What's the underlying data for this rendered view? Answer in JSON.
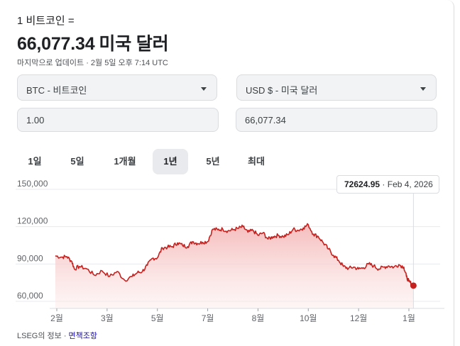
{
  "converter": {
    "from_line": "1 비트코인 =",
    "to_value": "66,077.34",
    "to_unit": "미국 달러",
    "updated": "마지막으로 업데이트 · 2월 5일 오후 7:14 UTC",
    "from_currency": "BTC - 비트코인",
    "to_currency": "USD $ - 미국 달러",
    "from_amount": "1.00",
    "to_amount": "66,077.34"
  },
  "tabs": [
    {
      "label": "1일"
    },
    {
      "label": "5일"
    },
    {
      "label": "1개월"
    },
    {
      "label": "1년",
      "active": true
    },
    {
      "label": "5년"
    },
    {
      "label": "최대"
    }
  ],
  "tooltip": {
    "value": "72624.95",
    "date": "· Feb 4, 2026"
  },
  "footer": {
    "source": "LSEG의 정보 · ",
    "disclaimer": "면책조항"
  },
  "colors": {
    "line": "#c5221f",
    "fill_top": "#f4b4b4",
    "fill_bottom": "#fdecec",
    "grid": "#e8eaed"
  },
  "chart_data": {
    "type": "area",
    "ylim": [
      55000,
      155000
    ],
    "yticks": [
      {
        "value": 150000,
        "label": "150,000"
      },
      {
        "value": 120000,
        "label": "120,000"
      },
      {
        "value": 90000,
        "label": "90,000"
      },
      {
        "value": 60000,
        "label": "60,000"
      }
    ],
    "xlim": [
      0,
      12.3
    ],
    "xticks": [
      {
        "value": 0,
        "label": "2월"
      },
      {
        "value": 1,
        "label": "3월"
      },
      {
        "value": 2,
        "label": "5월"
      },
      {
        "value": 3,
        "label": "7월"
      },
      {
        "value": 4,
        "label": "8월"
      },
      {
        "value": 5,
        "label": "10월"
      },
      {
        "value": 6,
        "label": "12월"
      },
      {
        "value": 7,
        "label": "1월"
      }
    ],
    "series": [
      {
        "values": [
          [
            -0.03,
            96500
          ],
          [
            0.1,
            95500
          ],
          [
            0.2,
            96000
          ],
          [
            0.3,
            92000
          ],
          [
            0.35,
            86000
          ],
          [
            0.45,
            88000
          ],
          [
            0.6,
            86000
          ],
          [
            0.75,
            81000
          ],
          [
            0.9,
            84500
          ],
          [
            1.05,
            80000
          ],
          [
            1.2,
            84000
          ],
          [
            1.35,
            77000
          ],
          [
            1.5,
            80000
          ],
          [
            1.6,
            83000
          ],
          [
            1.7,
            84000
          ],
          [
            1.8,
            89000
          ],
          [
            1.9,
            94500
          ],
          [
            2.0,
            95000
          ],
          [
            2.1,
            103000
          ],
          [
            2.2,
            103500
          ],
          [
            2.3,
            104000
          ],
          [
            2.4,
            107000
          ],
          [
            2.5,
            105000
          ],
          [
            2.6,
            104000
          ],
          [
            2.7,
            108000
          ],
          [
            2.8,
            106500
          ],
          [
            2.9,
            107500
          ],
          [
            3.0,
            108000
          ],
          [
            3.1,
            118000
          ],
          [
            3.2,
            117500
          ],
          [
            3.3,
            118000
          ],
          [
            3.4,
            116500
          ],
          [
            3.5,
            117500
          ],
          [
            3.6,
            118500
          ],
          [
            3.7,
            120000
          ],
          [
            3.8,
            115500
          ],
          [
            3.9,
            117000
          ],
          [
            4.0,
            113000
          ],
          [
            4.1,
            115000
          ],
          [
            4.2,
            110000
          ],
          [
            4.3,
            112000
          ],
          [
            4.4,
            113000
          ],
          [
            4.5,
            112000
          ],
          [
            4.6,
            113500
          ],
          [
            4.7,
            118000
          ],
          [
            4.8,
            117000
          ],
          [
            4.9,
            119000
          ],
          [
            5.0,
            121500
          ],
          [
            5.1,
            114000
          ],
          [
            5.2,
            112000
          ],
          [
            5.3,
            107000
          ],
          [
            5.4,
            102000
          ],
          [
            5.5,
            97000
          ],
          [
            5.6,
            93000
          ],
          [
            5.7,
            88000
          ],
          [
            5.8,
            86500
          ],
          [
            5.9,
            87500
          ],
          [
            6.0,
            86000
          ],
          [
            6.1,
            87000
          ],
          [
            6.2,
            90000
          ],
          [
            6.3,
            88500
          ],
          [
            6.4,
            86000
          ],
          [
            6.5,
            87500
          ],
          [
            6.6,
            88500
          ],
          [
            6.7,
            87500
          ],
          [
            6.8,
            89500
          ],
          [
            6.9,
            87500
          ],
          [
            6.95,
            80000
          ],
          [
            7.0,
            76000
          ],
          [
            7.05,
            74000
          ],
          [
            7.09,
            72624.95
          ]
        ]
      }
    ],
    "marker": {
      "x": 7.09,
      "y": 72624.95
    }
  }
}
